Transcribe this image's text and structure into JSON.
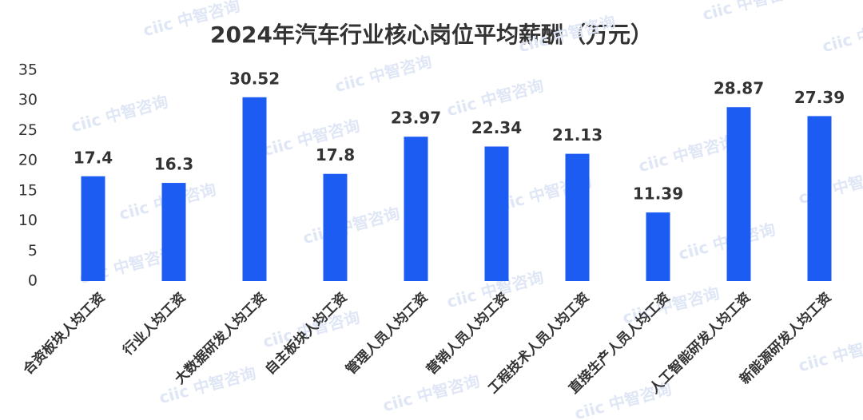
{
  "chart_data": {
    "type": "bar",
    "title": "2024年汽车行业核心岗位平均薪酬（万元）",
    "watermark": "ciic 中智咨询",
    "categories": [
      "合资板块人均工资",
      "行业人均工资",
      "大数据研发人均工资",
      "自主板块人均工资",
      "管理人员人均工资",
      "营销人员人均工资",
      "工程技术人员人均工资",
      "直接生产人员人均工资",
      "人工智能研发人均工资",
      "新能源研发人均工资"
    ],
    "values": [
      17.4,
      16.3,
      30.52,
      17.8,
      23.97,
      22.34,
      21.13,
      11.39,
      28.87,
      27.39
    ],
    "color": "#1d5cf2",
    "ylim": [
      0,
      35
    ],
    "yticks": [
      0,
      5,
      10,
      15,
      20,
      25,
      30,
      35
    ],
    "grid": false
  }
}
